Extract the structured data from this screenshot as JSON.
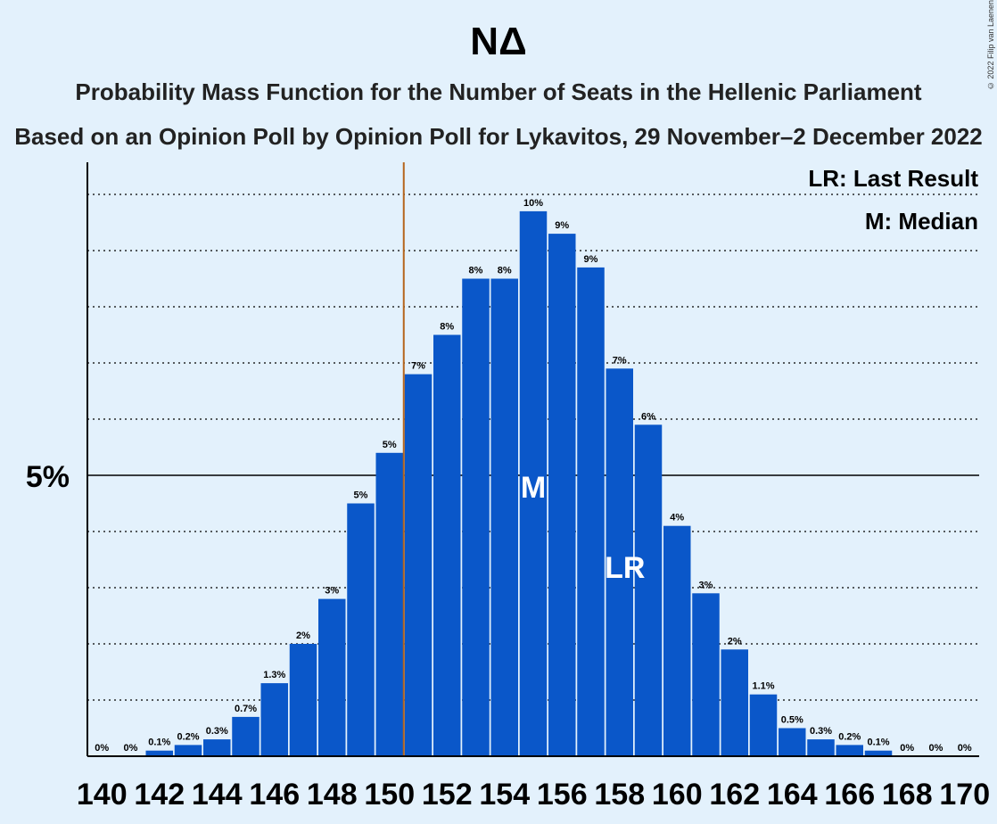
{
  "header": {
    "title": "ΝΔ",
    "subtitle": "Probability Mass Function for the Number of Seats in the Hellenic Parliament",
    "subtitle2": "Based on an Opinion Poll by Opinion Poll for Lykavitos, 29 November–2 December 2022",
    "copyright": "© 2022 Filip van Laenen"
  },
  "legend": {
    "last_result": "LR: Last Result",
    "median": "M: Median"
  },
  "colors": {
    "background": "#e3f1fc",
    "bar": "#0a57c9",
    "last_result_line": "#b5651d"
  },
  "chart_data": {
    "type": "bar",
    "x": [
      140,
      141,
      142,
      143,
      144,
      145,
      146,
      147,
      148,
      149,
      150,
      151,
      152,
      153,
      154,
      155,
      156,
      157,
      158,
      159,
      160,
      161,
      162,
      163,
      164,
      165,
      166,
      167,
      168,
      169,
      170
    ],
    "values": [
      0,
      0,
      0.1,
      0.2,
      0.3,
      0.7,
      1.3,
      2.0,
      2.8,
      4.5,
      5.4,
      6.8,
      7.5,
      8.5,
      8.5,
      9.7,
      9.3,
      8.7,
      6.9,
      5.9,
      4.1,
      2.9,
      1.9,
      1.1,
      0.5,
      0.3,
      0.2,
      0.1,
      0,
      0,
      0
    ],
    "labels": [
      "0%",
      "0%",
      "0.1%",
      "0.2%",
      "0.3%",
      "0.7%",
      "1.3%",
      "2%",
      "3%",
      "5%",
      "5%",
      "7%",
      "8%",
      "8%",
      "8%",
      "10%",
      "9%",
      "9%",
      "7%",
      "6%",
      "4%",
      "3%",
      "2%",
      "1.1%",
      "0.5%",
      "0.3%",
      "0.2%",
      "0.1%",
      "0%",
      "0%",
      "0%"
    ],
    "x_tick_labels": [
      "140",
      "142",
      "144",
      "146",
      "148",
      "150",
      "152",
      "154",
      "156",
      "158",
      "160",
      "162",
      "164",
      "166",
      "168",
      "170"
    ],
    "y_tick_label": "5%",
    "y_tick_value": 5,
    "ylim": [
      0,
      10.6
    ],
    "last_result_seat": 158,
    "median_seat": 155,
    "last_result_marker": "LR",
    "median_marker": "M",
    "majority_threshold_seat": 151
  }
}
